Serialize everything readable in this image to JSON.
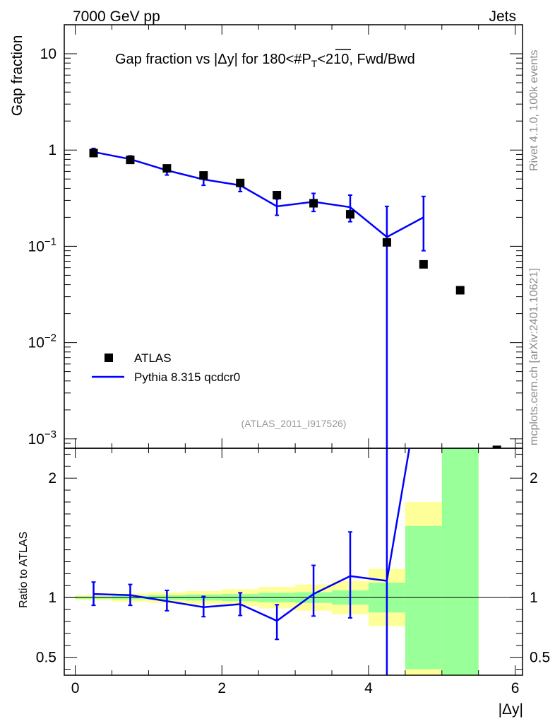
{
  "header": {
    "energy_label": "7000 GeV pp",
    "category_label": "Jets",
    "rivet_label": "Rivet 4.1.0,  100k events",
    "mcplots_label": "mcplots.cern.ch [arXiv:2401.10621]",
    "analysis_label": "(ATLAS_2011_I917526)"
  },
  "chart_data": {
    "type": "scatter",
    "title": "Gap fraction vs |Δy| for 180<#bar{P_{T}}<210, Fwd/Bwd",
    "title_parts": {
      "prefix": "Gap fraction vs |Δy| for 180<#",
      "p": "P",
      "sub": "T",
      "suffix": "<210, Fwd/Bwd"
    },
    "xlabel": "|Δy|",
    "ylabel": "Gap fraction",
    "ratio_ylabel": "Ratio to ATLAS",
    "xlim": [
      -0.15,
      6.1
    ],
    "ylim": [
      0.0008,
      20
    ],
    "ratio_ylim": [
      0.35,
      2.25
    ],
    "x_ticks": [
      0,
      2,
      4,
      6
    ],
    "x_tick_labels": [
      "0",
      "2",
      "4",
      "6"
    ],
    "y_ticks": [
      10,
      1,
      0.1,
      0.01,
      0.001
    ],
    "y_tick_labels": [
      {
        "mant": "10",
        "exp": ""
      },
      {
        "mant": "1",
        "exp": ""
      },
      {
        "mant": "10",
        "exp": "−1"
      },
      {
        "mant": "10",
        "exp": "−2"
      },
      {
        "mant": "10",
        "exp": "−3"
      }
    ],
    "ratio_ticks": [
      0.5,
      1,
      2
    ],
    "ratio_tick_labels": [
      "0.5",
      "1",
      "2"
    ],
    "legend": {
      "position": "lower-left",
      "entries": [
        "ATLAS",
        "Pythia 8.315 qcdcr0"
      ]
    },
    "series": [
      {
        "name": "ATLAS",
        "style": "markers",
        "color": "#000000",
        "x": [
          0.25,
          0.75,
          1.25,
          1.75,
          2.25,
          2.75,
          3.25,
          3.75,
          4.25,
          4.75,
          5.25,
          5.75
        ],
        "y": [
          0.93,
          0.79,
          0.645,
          0.545,
          0.455,
          0.34,
          0.28,
          0.215,
          0.11,
          0.065,
          0.035,
          0.00077
        ]
      },
      {
        "name": "Pythia 8.315 qcdcr0",
        "style": "line",
        "color": "#0000ff",
        "x": [
          0.25,
          0.75,
          1.25,
          1.75,
          2.25,
          2.75,
          3.25,
          3.75,
          4.25,
          4.75
        ],
        "y": [
          0.955,
          0.805,
          0.615,
          0.495,
          0.43,
          0.26,
          0.29,
          0.255,
          0.125,
          0.2
        ],
        "y_low": [
          0.87,
          0.74,
          0.55,
          0.43,
          0.37,
          0.21,
          0.23,
          0.18,
          0.0001,
          0.09
        ],
        "y_high": [
          1.04,
          0.87,
          0.68,
          0.56,
          0.49,
          0.31,
          0.355,
          0.34,
          0.26,
          0.33
        ]
      }
    ],
    "ratio": {
      "reference": 1,
      "mc_x": [
        0.25,
        0.75,
        1.25,
        1.75,
        2.25,
        2.75,
        3.25,
        3.75,
        4.25,
        4.75
      ],
      "mc_y": [
        1.03,
        1.02,
        0.97,
        0.92,
        0.945,
        0.805,
        1.03,
        1.18,
        1.14,
        2.95
      ],
      "mc_low": [
        0.935,
        0.935,
        0.89,
        0.84,
        0.85,
        0.65,
        0.845,
        0.83,
        0.0,
        0.0
      ],
      "mc_high": [
        1.13,
        1.11,
        1.06,
        1.01,
        1.04,
        0.94,
        1.27,
        1.55,
        2.35,
        0.0
      ],
      "bands": [
        {
          "x0": 0.0,
          "x1": 0.5,
          "inner": [
            0.99,
            1.01
          ],
          "outer": [
            0.98,
            1.02
          ]
        },
        {
          "x0": 0.5,
          "x1": 1.0,
          "inner": [
            0.985,
            1.015
          ],
          "outer": [
            0.965,
            1.035
          ]
        },
        {
          "x0": 1.0,
          "x1": 1.5,
          "inner": [
            0.98,
            1.02
          ],
          "outer": [
            0.955,
            1.045
          ]
        },
        {
          "x0": 1.5,
          "x1": 2.0,
          "inner": [
            0.975,
            1.025
          ],
          "outer": [
            0.945,
            1.055
          ]
        },
        {
          "x0": 2.0,
          "x1": 2.5,
          "inner": [
            0.97,
            1.03
          ],
          "outer": [
            0.93,
            1.07
          ]
        },
        {
          "x0": 2.5,
          "x1": 3.0,
          "inner": [
            0.96,
            1.04
          ],
          "outer": [
            0.91,
            1.09
          ]
        },
        {
          "x0": 3.0,
          "x1": 3.5,
          "inner": [
            0.955,
            1.045
          ],
          "outer": [
            0.89,
            1.11
          ]
        },
        {
          "x0": 3.5,
          "x1": 4.0,
          "inner": [
            0.94,
            1.06
          ],
          "outer": [
            0.86,
            1.14
          ]
        },
        {
          "x0": 4.0,
          "x1": 4.5,
          "inner": [
            0.875,
            1.125
          ],
          "outer": [
            0.76,
            1.24
          ]
        },
        {
          "x0": 4.5,
          "x1": 5.0,
          "inner": [
            0.4,
            1.6
          ],
          "outer": [
            0.2,
            1.8
          ]
        },
        {
          "x0": 5.0,
          "x1": 5.5,
          "inner": [
            0.1,
            3.5
          ],
          "outer": [
            0.1,
            3.5
          ]
        }
      ],
      "band_colors": {
        "inner": "#99ff99",
        "outer": "#ffff99"
      }
    }
  }
}
